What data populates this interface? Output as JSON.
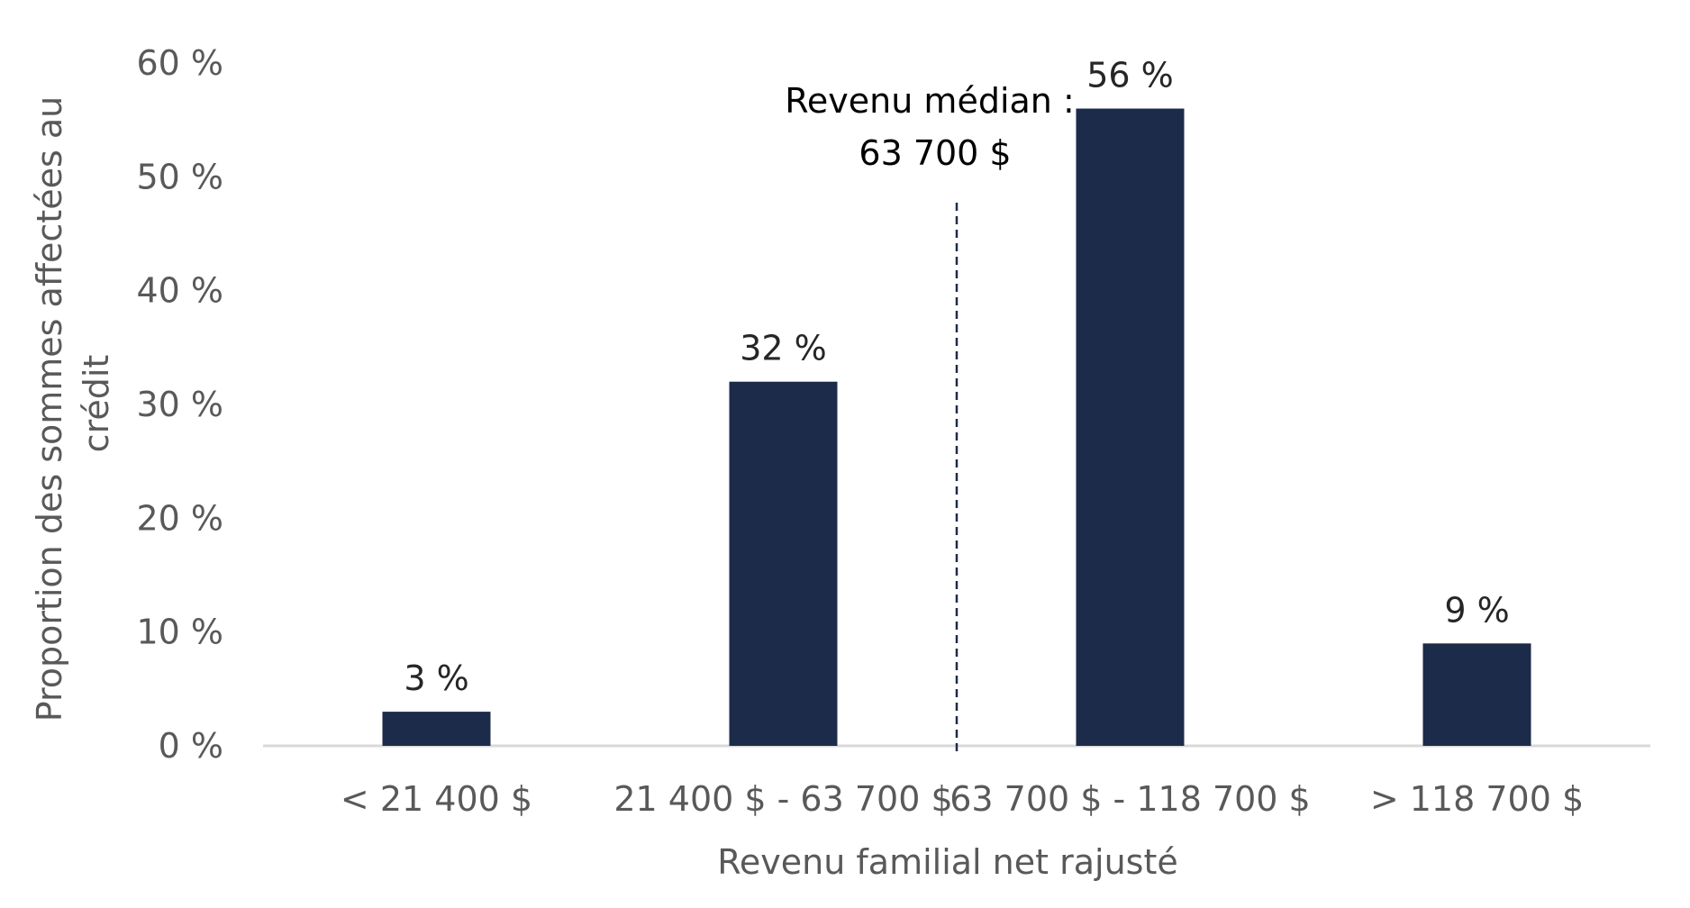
{
  "chart_data": {
    "type": "bar",
    "categories": [
      "< 21 400 $",
      "21 400 $ - 63 700 $",
      "63 700 $ - 118 700 $",
      "> 118 700 $"
    ],
    "values": [
      3,
      32,
      56,
      9
    ],
    "data_labels": [
      "3 %",
      "32 %",
      "56 %",
      "9 %"
    ],
    "xlabel": "Revenu familial net rajusté",
    "ylabel_lines": [
      "Proportion des sommes affectées au",
      "crédit"
    ],
    "ylim": [
      0,
      60
    ],
    "yticks": [
      0,
      10,
      20,
      30,
      40,
      50,
      60
    ],
    "ytick_labels": [
      "0 %",
      "10 %",
      "20 %",
      "30 %",
      "40 %",
      "50 %",
      "60 %"
    ],
    "grid": false,
    "legend": "none",
    "bar_color": "#1d2b4a",
    "axis_color": "#d9d9d9",
    "median_line": {
      "position_between_categories": [
        1,
        2
      ],
      "label_lines": [
        "Revenu médian :",
        "63 700 $"
      ],
      "style": "dashed",
      "color": "#1d2b4a"
    }
  }
}
